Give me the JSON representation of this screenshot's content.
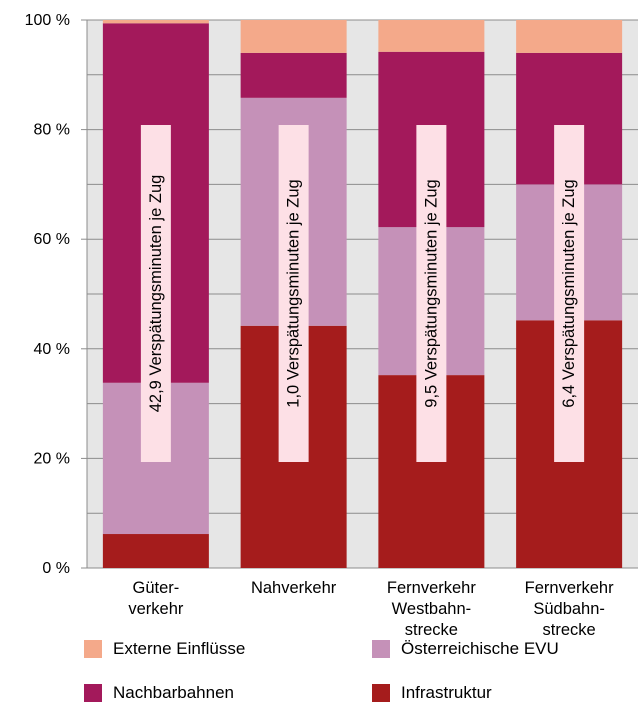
{
  "chart_data": {
    "type": "bar",
    "stacked": true,
    "categories": [
      [
        "Güter-",
        "verkehr"
      ],
      [
        "Nahverkehr"
      ],
      [
        "Fernverkehr",
        "Westbahn-",
        "strecke"
      ],
      [
        "Fernverkehr",
        "Südbahn-",
        "strecke"
      ]
    ],
    "ylim": [
      0,
      100
    ],
    "yticks": [
      0,
      20,
      40,
      60,
      80,
      100
    ],
    "ytick_labels": [
      "0 %",
      "20 %",
      "40 %",
      "60 %",
      "80 %",
      "100 %"
    ],
    "grid": true,
    "legend_position": "bottom",
    "series": [
      {
        "name": "Infrastruktur",
        "color": "#a51c1c",
        "values": [
          6.2,
          44.2,
          35.2,
          45.2
        ]
      },
      {
        "name": "Österreichische EVU",
        "color": "#c591b8",
        "values": [
          27.6,
          41.6,
          27.0,
          24.8
        ]
      },
      {
        "name": "Nachbarbahnen",
        "color": "#a3195b",
        "values": [
          65.6,
          8.2,
          32.0,
          24.0
        ]
      },
      {
        "name": "Externe Einflüsse",
        "color": "#f4a98a",
        "values": [
          0.6,
          6.0,
          5.8,
          6.0
        ]
      }
    ],
    "annotations": [
      "42,9 Verspätungsminuten je Zug",
      "1,0 Verspätungsminuten je Zug",
      "9,5 Verspätungsminuten je Zug",
      "6,4 Verspätungsminuten je Zug"
    ],
    "annotation_box_color": "#fde0e6",
    "legend_order": [
      "Externe Einflüsse",
      "Österreichische EVU",
      "Nachbarbahnen",
      "Infrastruktur"
    ]
  }
}
